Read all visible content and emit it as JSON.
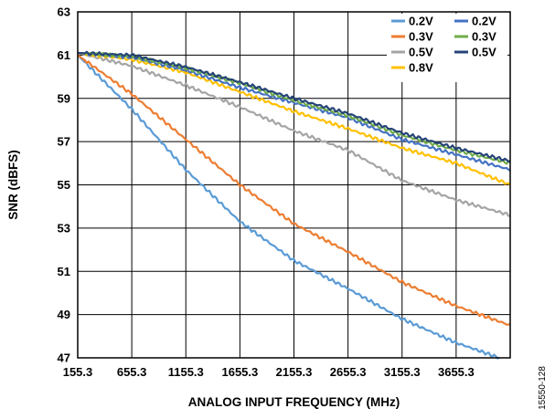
{
  "figure_id": "15550-128",
  "chart_data": {
    "type": "line",
    "title": "",
    "xlabel": "ANALOG INPUT FREQUENCY (MHz)",
    "ylabel": "SNR (dBFS)",
    "xlim": [
      155.3,
      4155.3
    ],
    "ylim": [
      47,
      63
    ],
    "xticks": [
      155.3,
      655.3,
      1155.3,
      1655.3,
      2155.3,
      2655.3,
      3155.3,
      3655.3
    ],
    "xtick_labels": [
      "155.3",
      "655.3",
      "1155.3",
      "1655.3",
      "2155.3",
      "2655.3",
      "3155.3",
      "3655.3"
    ],
    "yticks": [
      47,
      49,
      51,
      53,
      55,
      57,
      59,
      61,
      63
    ],
    "ytick_labels": [
      "47",
      "49",
      "51",
      "53",
      "55",
      "57",
      "59",
      "61",
      "63"
    ],
    "grid": true,
    "legend_position": "top-right",
    "series": [
      {
        "name": "0.2V",
        "color": "#5B9BD5",
        "x": [
          155.3,
          655.3,
          1155.3,
          1655.3,
          2155.3,
          2655.3,
          3155.3,
          3655.3,
          4055.3
        ],
        "y": [
          61.0,
          58.5,
          55.7,
          53.3,
          51.5,
          50.2,
          48.8,
          47.7,
          47.0
        ]
      },
      {
        "name": "0.3V",
        "color": "#ED7D31",
        "x": [
          155.3,
          655.3,
          1155.3,
          1655.3,
          2155.3,
          2655.3,
          3155.3,
          3655.3,
          4155.3
        ],
        "y": [
          61.0,
          59.2,
          57.1,
          55.0,
          53.2,
          51.9,
          50.5,
          49.4,
          48.5
        ]
      },
      {
        "name": "0.5V",
        "color": "#A5A5A5",
        "x": [
          155.3,
          655.3,
          1155.3,
          1655.3,
          2155.3,
          2655.3,
          3155.3,
          3655.3,
          4155.3
        ],
        "y": [
          61.1,
          60.5,
          59.6,
          58.6,
          57.5,
          56.6,
          55.2,
          54.3,
          53.6
        ]
      },
      {
        "name": "0.8V",
        "color": "#FFC000",
        "x": [
          155.3,
          655.3,
          1155.3,
          1655.3,
          2155.3,
          2655.3,
          3155.3,
          3655.3,
          4155.3
        ],
        "y": [
          61.1,
          60.8,
          60.2,
          59.3,
          58.4,
          57.6,
          56.7,
          56.0,
          55.0
        ]
      },
      {
        "name": "0.2V",
        "color": "#4472C4",
        "x": [
          155.3,
          655.3,
          1155.3,
          1655.3,
          2155.3,
          2655.3,
          3155.3,
          3655.3,
          4155.3
        ],
        "y": [
          61.1,
          60.9,
          60.3,
          59.5,
          58.8,
          58.1,
          57.1,
          56.4,
          55.7
        ]
      },
      {
        "name": "0.3V",
        "color": "#70AD47",
        "x": [
          155.3,
          655.3,
          1155.3,
          1655.3,
          2155.3,
          2655.3,
          3155.3,
          3655.3,
          4155.3
        ],
        "y": [
          61.1,
          60.95,
          60.4,
          59.7,
          58.9,
          58.2,
          57.3,
          56.6,
          56.0
        ]
      },
      {
        "name": "0.5V",
        "color": "#264478",
        "x": [
          155.3,
          655.3,
          1155.3,
          1655.3,
          2155.3,
          2655.3,
          3155.3,
          3655.3,
          4155.3
        ],
        "y": [
          61.1,
          61.0,
          60.45,
          59.75,
          59.0,
          58.3,
          57.4,
          56.7,
          56.1
        ]
      }
    ],
    "legend_layout": {
      "columns": [
        [
          0,
          1,
          2,
          3
        ],
        [
          4,
          5,
          6
        ]
      ]
    }
  }
}
